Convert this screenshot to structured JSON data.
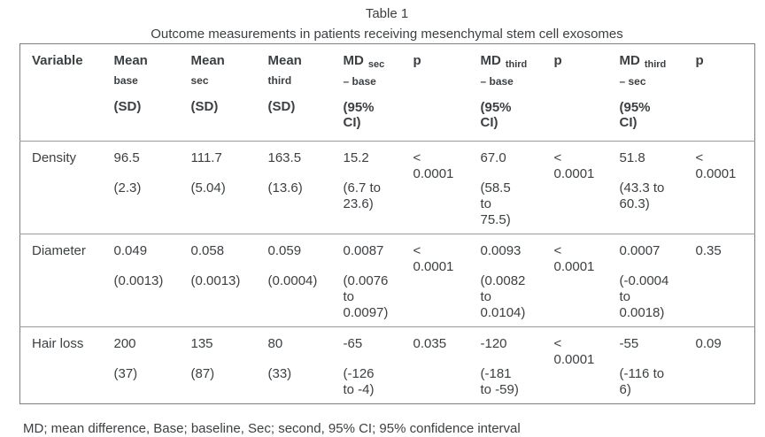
{
  "page": {
    "title": "Table 1",
    "subtitle": "Outcome measurements in patients receiving mesenchymal stem cell exosomes",
    "footnote": "MD; mean difference, Base; baseline, Sec; second, 95% CI; 95% confidence interval"
  },
  "colors": {
    "text": "#3c4043",
    "border_outer": "#7e7e7e",
    "border_inner": "#9b9b9b",
    "background": "#ffffff"
  },
  "table": {
    "columns": [
      {
        "id": "variable",
        "label": "Variable"
      },
      {
        "id": "mean-base",
        "main": "Mean",
        "subline": "base",
        "paren": "(SD)"
      },
      {
        "id": "mean-sec",
        "main": "Mean",
        "subline": "sec",
        "paren": "(SD)"
      },
      {
        "id": "mean-third",
        "main": "Mean",
        "subline": "third",
        "paren": "(SD)"
      },
      {
        "id": "md-sec-base",
        "main": "MD",
        "sub": "sec",
        "subline": "– base",
        "paren": "(95%\nCI)"
      },
      {
        "id": "p1",
        "label": "p"
      },
      {
        "id": "md-third-base",
        "main": "MD",
        "sub": "third",
        "subline": "– base",
        "paren": "(95%\nCI)"
      },
      {
        "id": "p2",
        "label": "p"
      },
      {
        "id": "md-third-sec",
        "main": "MD",
        "sub": "third",
        "subline": "– sec",
        "paren": "(95%\nCI)"
      },
      {
        "id": "p3",
        "label": "p"
      }
    ],
    "rows": [
      {
        "variable": "Density",
        "cells": [
          {
            "value": "96.5",
            "ci": "(2.3)"
          },
          {
            "value": "111.7",
            "ci": "(5.04)"
          },
          {
            "value": "163.5",
            "ci": "(13.6)"
          },
          {
            "value": "15.2",
            "ci": "(6.7 to\n23.6)"
          },
          {
            "value": "<\n0.0001"
          },
          {
            "value": "67.0",
            "ci": "(58.5\nto\n75.5)"
          },
          {
            "value": "<\n0.0001"
          },
          {
            "value": "51.8",
            "ci": "(43.3 to\n60.3)"
          },
          {
            "value": "<\n0.0001"
          }
        ]
      },
      {
        "variable": "Diameter",
        "cells": [
          {
            "value": "0.049",
            "ci": "(0.0013)"
          },
          {
            "value": "0.058",
            "ci": "(0.0013)"
          },
          {
            "value": "0.059",
            "ci": "(0.0004)"
          },
          {
            "value": "0.0087",
            "ci": "(0.0076\nto\n0.0097)"
          },
          {
            "value": "<\n0.0001"
          },
          {
            "value": "0.0093",
            "ci": "(0.0082\nto\n0.0104)"
          },
          {
            "value": "<\n0.0001"
          },
          {
            "value": "0.0007",
            "ci": "(-0.0004\nto\n0.0018)"
          },
          {
            "value": "0.35"
          }
        ]
      },
      {
        "variable": "Hair loss",
        "cells": [
          {
            "value": "200",
            "ci": "(37)"
          },
          {
            "value": "135",
            "ci": "(87)"
          },
          {
            "value": "80",
            "ci": "(33)"
          },
          {
            "value": "-65",
            "ci": "(-126\nto -4)"
          },
          {
            "value": "0.035"
          },
          {
            "value": "-120",
            "ci": "(-181\nto -59)"
          },
          {
            "value": "<\n0.0001"
          },
          {
            "value": "-55",
            "ci": "(-116 to\n6)"
          },
          {
            "value": "0.09"
          }
        ]
      }
    ]
  }
}
